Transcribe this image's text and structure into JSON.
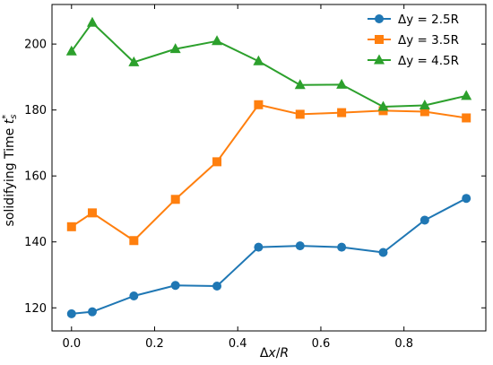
{
  "chart_data": {
    "type": "line",
    "xlabel": "Δx/R",
    "ylabel": "solidifying Time t*s",
    "xlim": [
      -0.047,
      0.997
    ],
    "ylim": [
      113,
      212
    ],
    "xticks": [
      0.0,
      0.2,
      0.4,
      0.6,
      0.8
    ],
    "xtick_labels": [
      "0.0",
      "0.2",
      "0.4",
      "0.6",
      "0.8"
    ],
    "yticks": [
      120,
      140,
      160,
      180,
      200
    ],
    "ytick_labels": [
      "120",
      "140",
      "160",
      "180",
      "200"
    ],
    "grid": false,
    "legend_position": "top-right",
    "x": [
      0.0,
      0.05,
      0.15,
      0.25,
      0.35,
      0.45,
      0.55,
      0.65,
      0.75,
      0.85,
      0.95
    ],
    "series": [
      {
        "name": "Δy = 2.5R",
        "color": "#1f77b4",
        "marker": "circle",
        "values": [
          118.2,
          118.8,
          123.6,
          126.8,
          126.6,
          138.4,
          138.8,
          138.4,
          136.8,
          146.6,
          153.2
        ]
      },
      {
        "name": "Δy = 3.5R",
        "color": "#ff7f0e",
        "marker": "square",
        "values": [
          144.6,
          148.8,
          140.4,
          152.9,
          164.3,
          181.6,
          178.7,
          179.2,
          179.8,
          179.5,
          177.6
        ]
      },
      {
        "name": "Δy = 4.5R",
        "color": "#2ca02c",
        "marker": "triangle",
        "values": [
          197.8,
          206.5,
          194.5,
          198.5,
          200.9,
          194.8,
          187.6,
          187.7,
          181.0,
          181.4,
          184.3
        ]
      }
    ]
  }
}
